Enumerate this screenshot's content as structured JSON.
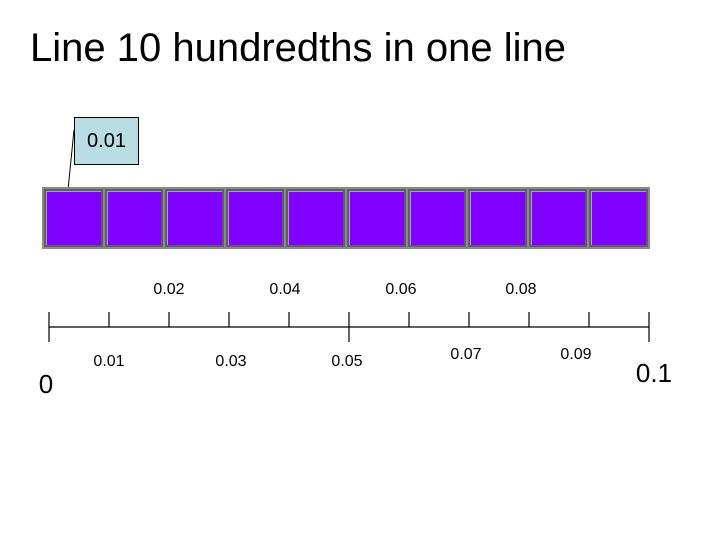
{
  "title": "Line 10 hundredths in one line",
  "callout": {
    "label": "0.01"
  },
  "squares": {
    "count": 10,
    "fill_color": "#8000ff"
  },
  "numberline": {
    "start_label": "0",
    "end_label": "0.1",
    "upper_labels": [
      "0.02",
      "0.04",
      "0.06",
      "0.08"
    ],
    "lower_labels": [
      "0.01",
      "0.03",
      "0.05",
      "0.07",
      "0.09"
    ]
  }
}
